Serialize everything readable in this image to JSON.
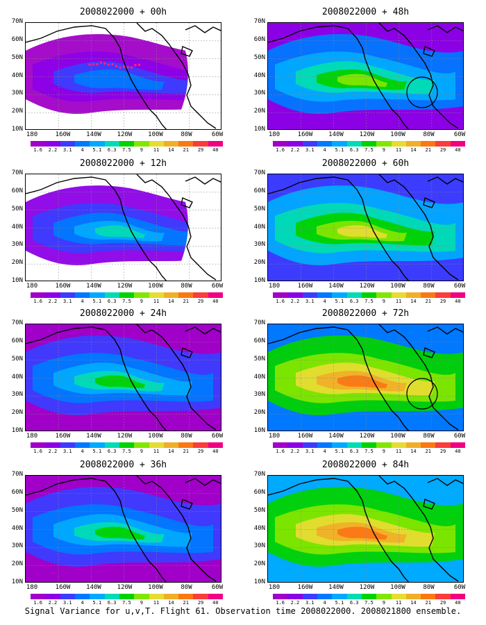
{
  "caption": "Signal Variance for u,v,T. Flight 61. Observation time 2008022000. 2008021800 ensemble.",
  "lat_labels": [
    "70N",
    "60N",
    "50N",
    "40N",
    "30N",
    "20N",
    "10N"
  ],
  "lon_labels": [
    "180",
    "160W",
    "140W",
    "120W",
    "100W",
    "80W",
    "60W"
  ],
  "colorbar": {
    "labels": [
      "1.6",
      "2.2",
      "3.1",
      "4",
      "5.1",
      "6.3",
      "7.5",
      "9",
      "11",
      "14",
      "21",
      "29",
      "40"
    ],
    "colors": [
      "#a000c8",
      "#8c00e6",
      "#3c3cff",
      "#0078ff",
      "#00aaff",
      "#00dcb4",
      "#00d200",
      "#82e600",
      "#e6dc32",
      "#f0af28",
      "#fa7814",
      "#fa3c3c",
      "#f00082"
    ]
  },
  "panels": [
    {
      "title": "2008022000 + 00h",
      "level": 0,
      "marker": "dots"
    },
    {
      "title": "2008022000 + 48h",
      "level": 3,
      "marker": "circle"
    },
    {
      "title": "2008022000 + 12h",
      "level": 1,
      "marker": "none"
    },
    {
      "title": "2008022000 + 60h",
      "level": 4,
      "marker": "none"
    },
    {
      "title": "2008022000 + 24h",
      "level": 2,
      "marker": "none"
    },
    {
      "title": "2008022000 + 72h",
      "level": 5,
      "marker": "circle"
    },
    {
      "title": "2008022000 + 36h",
      "level": 2,
      "marker": "none"
    },
    {
      "title": "2008022000 + 84h",
      "level": 6,
      "marker": "none"
    }
  ]
}
